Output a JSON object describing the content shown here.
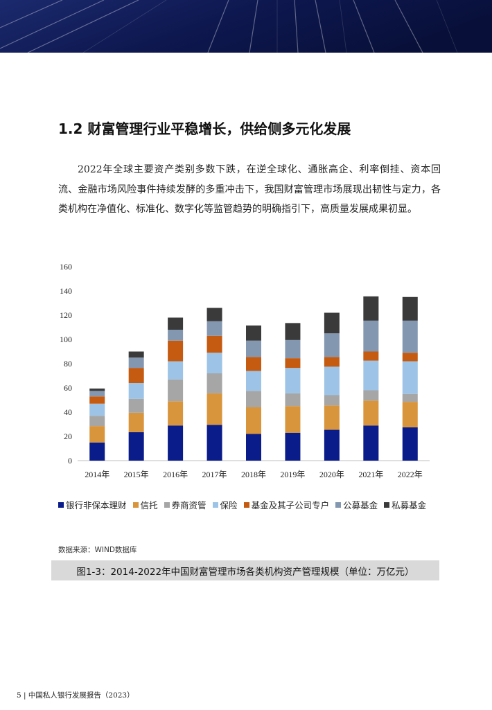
{
  "section": {
    "title": "1.2 财富管理行业平稳增长，供给侧多元化发展",
    "paragraph": "2022年全球主要资产类别多数下跌，在逆全球化、通胀高企、利率倒挂、资本回流、金融市场风险事件持续发酵的多重冲击下，我国财富管理市场展现出韧性与定力，各类机构在净值化、标准化、数字化等监管趋势的明确指引下，高质量发展成果初显。"
  },
  "chart_data": {
    "type": "bar",
    "stacked": true,
    "categories": [
      "2014年",
      "2015年",
      "2016年",
      "2017年",
      "2018年",
      "2019年",
      "2020年",
      "2021年",
      "2022年"
    ],
    "series": [
      {
        "name": "银行非保本理财",
        "color": "#0a1b8a",
        "values": [
          15,
          23.5,
          29,
          29.5,
          22,
          23,
          25.5,
          29,
          27.5
        ]
      },
      {
        "name": "信托",
        "color": "#d9953b",
        "values": [
          13.5,
          16,
          20,
          26,
          22,
          22,
          20,
          20.5,
          21
        ]
      },
      {
        "name": "券商资管",
        "color": "#a6a6a6",
        "values": [
          8.5,
          11.5,
          18,
          16.5,
          13.5,
          10.5,
          8.5,
          8.5,
          6.5
        ]
      },
      {
        "name": "保险",
        "color": "#9dc3e6",
        "values": [
          10,
          13,
          15,
          17,
          16.5,
          21,
          23.5,
          24.5,
          27
        ]
      },
      {
        "name": "基金及其子公司专户",
        "color": "#c55a11",
        "values": [
          6,
          12.5,
          17,
          14,
          11.5,
          8,
          8,
          7.5,
          7
        ]
      },
      {
        "name": "公募基金",
        "color": "#8497b0",
        "values": [
          4.5,
          8.5,
          9,
          12,
          13.5,
          15,
          19.5,
          25.5,
          26.5
        ]
      },
      {
        "name": "私募基金",
        "color": "#3a3a3a",
        "values": [
          2,
          5,
          10,
          11,
          12.5,
          14,
          17,
          20,
          19.5
        ]
      }
    ],
    "y_ticks": [
      "0",
      "20",
      "40",
      "60",
      "80",
      "100",
      "120",
      "140",
      "160"
    ],
    "ylim": [
      0,
      160
    ],
    "grid": false,
    "legend_position": "bottom"
  },
  "notes": {
    "source": "数据来源：WIND数据库",
    "caption": "图1-3：2014-2022年中国财富管理市场各类机构资产管理规模（单位：万亿元）"
  },
  "footer": {
    "text": "5 | 中国私人银行发展报告（2023）"
  }
}
